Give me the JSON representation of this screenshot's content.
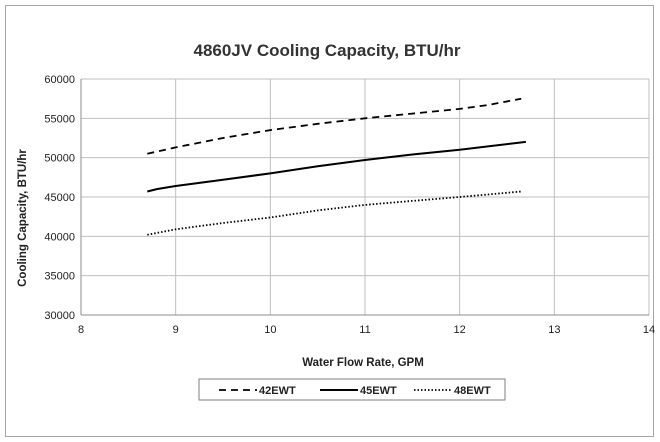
{
  "chart_data": {
    "type": "line",
    "title": "4860JV Cooling Capacity, BTU/hr",
    "xlabel": "Water Flow Rate, GPM",
    "ylabel": "Cooling Capacity, BTU/hr",
    "xlim": [
      8,
      14
    ],
    "ylim": [
      30000,
      60000
    ],
    "xticks": [
      8,
      9,
      10,
      11,
      12,
      13,
      14
    ],
    "yticks": [
      30000,
      35000,
      40000,
      45000,
      50000,
      55000,
      60000
    ],
    "grid": true,
    "legend_position": "bottom",
    "series": [
      {
        "name": "42EWT",
        "style": "dashed",
        "color": "#000000",
        "x": [
          8.7,
          9.0,
          9.5,
          10.0,
          10.5,
          11.0,
          11.5,
          12.0,
          12.3,
          12.65
        ],
        "y": [
          50500,
          51300,
          52500,
          53500,
          54300,
          55000,
          55600,
          56200,
          56700,
          57500
        ]
      },
      {
        "name": "45EWT",
        "style": "solid",
        "color": "#000000",
        "x": [
          8.7,
          8.8,
          9.0,
          9.5,
          10.0,
          10.5,
          11.0,
          11.5,
          12.0,
          12.7
        ],
        "y": [
          45700,
          46000,
          46400,
          47200,
          48000,
          48900,
          49700,
          50400,
          51000,
          52000
        ]
      },
      {
        "name": "48EWT",
        "style": "dotted",
        "color": "#000000",
        "x": [
          8.7,
          9.0,
          9.5,
          10.0,
          10.5,
          11.0,
          11.5,
          12.0,
          12.65
        ],
        "y": [
          40200,
          40900,
          41700,
          42400,
          43300,
          44000,
          44500,
          45000,
          45700
        ]
      }
    ]
  }
}
